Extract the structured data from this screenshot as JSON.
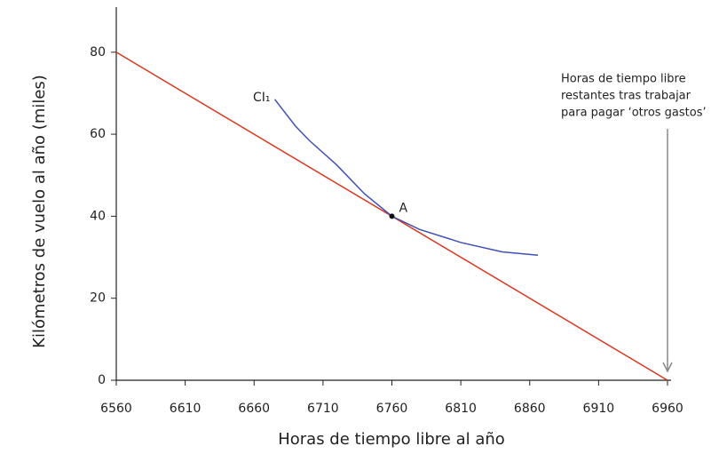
{
  "chart_data": {
    "type": "line",
    "x_label": "Horas de tiempo libre al año",
    "y_label": "Kilómetros de vuelo al año (miles)",
    "xlim": [
      6560,
      6960
    ],
    "ylim": [
      0,
      91
    ],
    "xticks": [
      6560,
      6610,
      6660,
      6710,
      6760,
      6810,
      6860,
      6910,
      6960
    ],
    "yticks": [
      0,
      20,
      40,
      60,
      80
    ],
    "series": [
      {
        "color": "#d9381e",
        "x": [
          6560,
          6960
        ],
        "values": [
          80,
          0
        ]
      },
      {
        "name": "CI₁",
        "color": "#3f51b5",
        "x": [
          6675,
          6690,
          6700,
          6720,
          6740,
          6760,
          6780,
          6810,
          6840,
          6866
        ],
        "values": [
          68.5,
          62,
          58.5,
          52.5,
          45.5,
          40,
          36.8,
          33.6,
          31.3,
          30.5
        ]
      }
    ],
    "points": [
      {
        "label": "A",
        "x": 6760,
        "y": 40
      }
    ],
    "annotation": [
      "Horas de tiempo libre",
      "restantes tras trabajar",
      "para pagar ‘otros gastos’"
    ]
  }
}
